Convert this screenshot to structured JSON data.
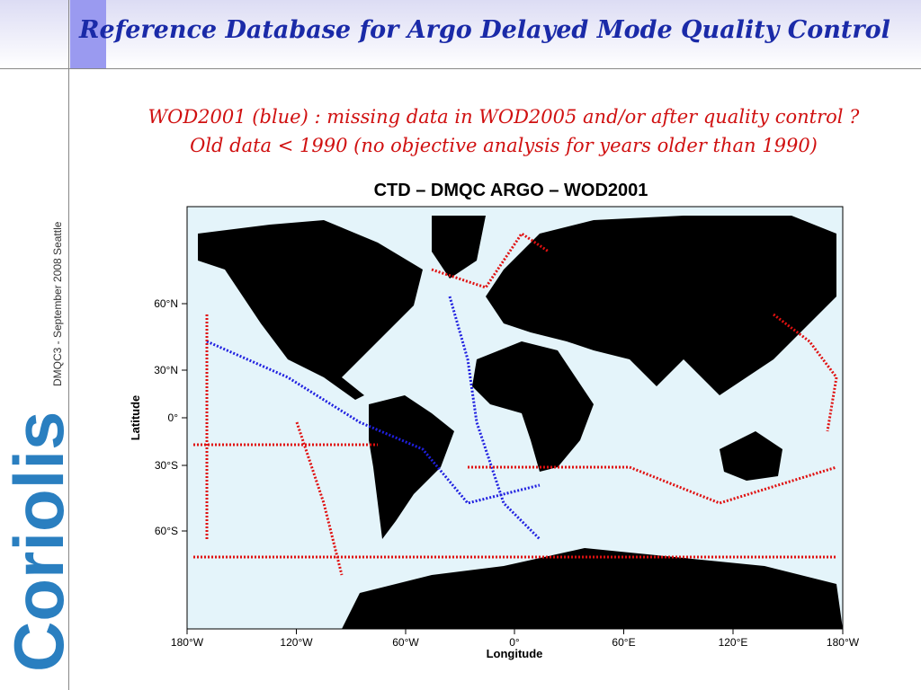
{
  "header": {
    "title": "Reference Database for Argo Delayed Mode Quality Control"
  },
  "notes": [
    "WOD2001 (blue) : missing data in WOD2005 and/or after quality control ?",
    "Old data < 1990 (no objective analysis for years older than 1990)"
  ],
  "sidebar": {
    "caption": "DMQC3 - September 2008  Seattle",
    "logo": "Coriolis"
  },
  "map": {
    "title": "CTD – DMQC ARGO – WOD2001",
    "xlabel": "Longitude",
    "ylabel": "Latitude",
    "xticks": [
      "180°W",
      "120°W",
      "60°W",
      "0°",
      "60°E",
      "120°E",
      "180°W"
    ],
    "yticks": [
      "60°N",
      "30°N",
      "0°",
      "30°S",
      "60°S"
    ]
  }
}
